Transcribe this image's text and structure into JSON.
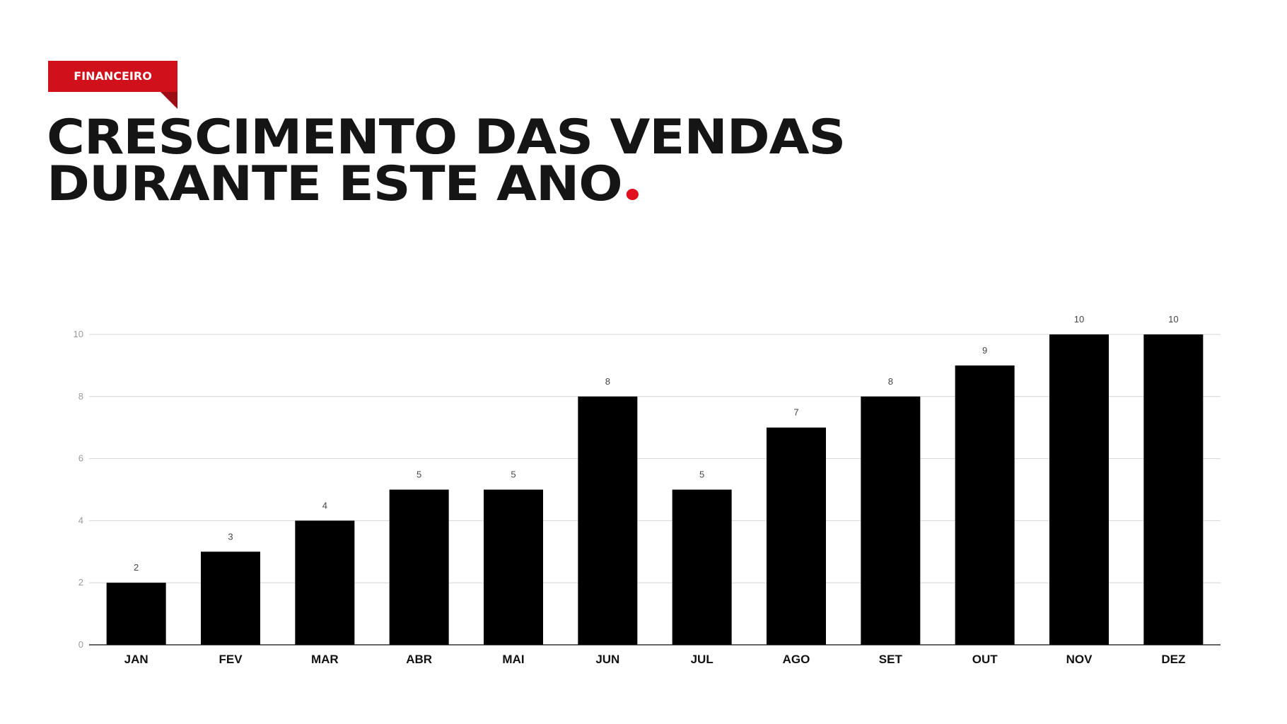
{
  "header": {
    "tag_label": "FINANCEIRO",
    "title_line1": "CRESCIMENTO DAS VENDAS",
    "title_line2": "DURANTE ESTE ANO",
    "accent_color": "#d0111b",
    "dot_color": "#e0101e"
  },
  "chart_data": {
    "type": "bar",
    "categories": [
      "JAN",
      "FEV",
      "MAR",
      "ABR",
      "MAI",
      "JUN",
      "JUL",
      "AGO",
      "SET",
      "OUT",
      "NOV",
      "DEZ"
    ],
    "values": [
      2,
      3,
      4,
      5,
      5,
      8,
      5,
      7,
      8,
      9,
      10,
      10
    ],
    "ylim": [
      0,
      10
    ],
    "yticks": [
      0,
      2,
      4,
      6,
      8,
      10
    ],
    "grid": true,
    "bar_color": "#000000",
    "data_labels": true,
    "title": "",
    "xlabel": "",
    "ylabel": ""
  }
}
